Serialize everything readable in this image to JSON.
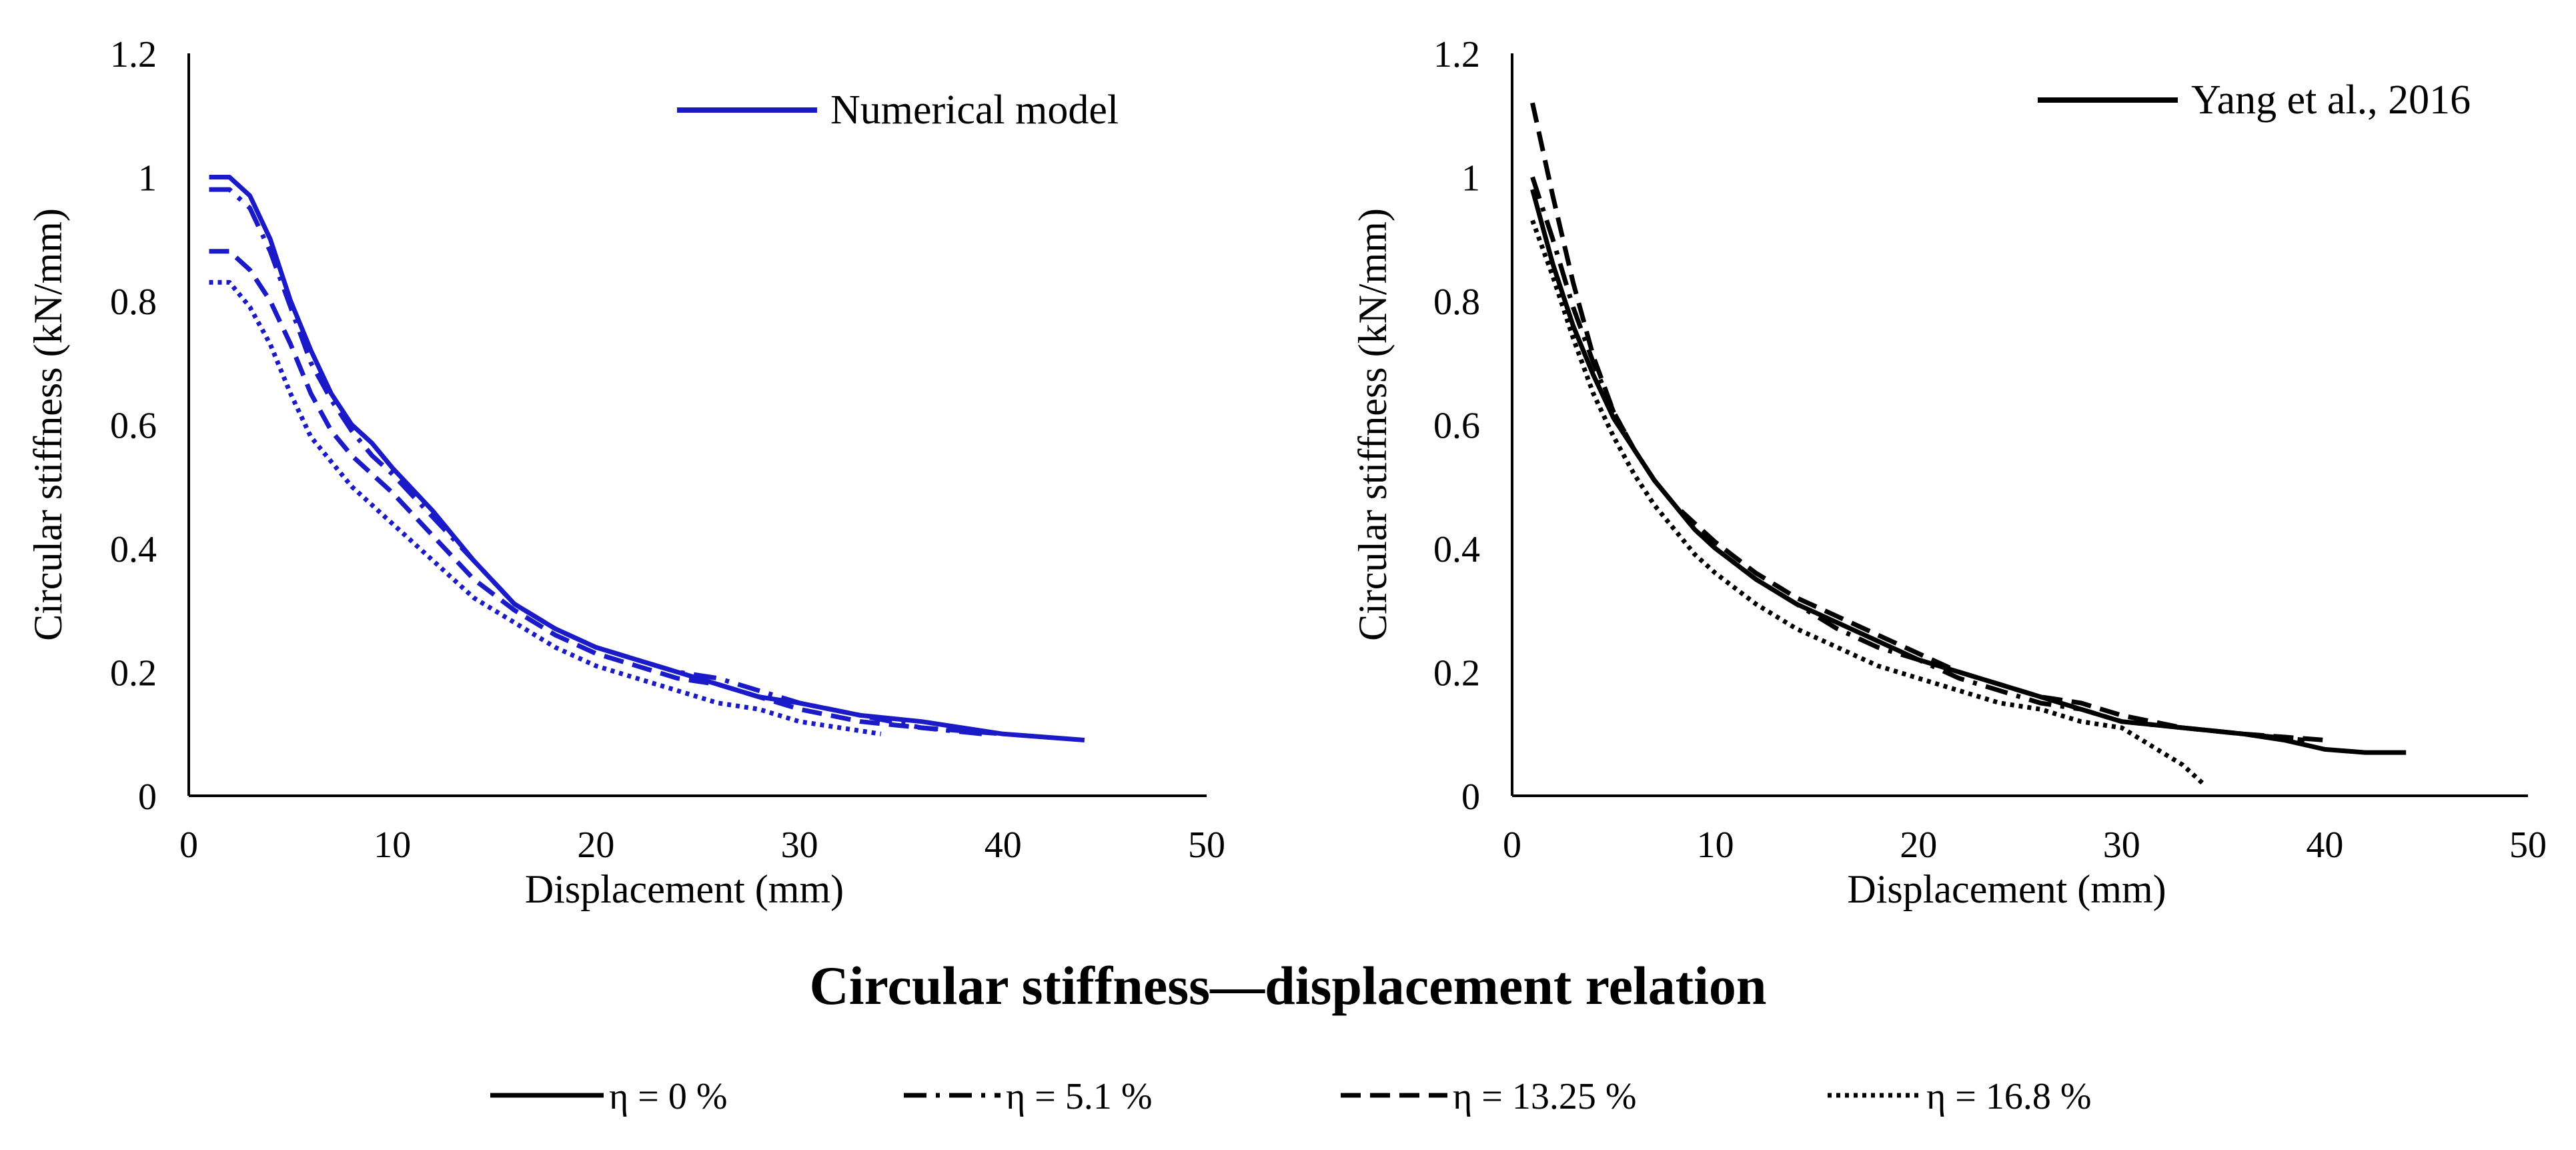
{
  "figure_title": "Circular stiffness—displacement relation",
  "colors": {
    "numerical": "#1a1ac8",
    "experimental": "#000000",
    "axis": "#000000"
  },
  "legend": {
    "items": [
      {
        "key": "eta0",
        "label": "η = 0 %",
        "style": "solid"
      },
      {
        "key": "eta5_1",
        "label": "η = 5.1 %",
        "style": "dashdot"
      },
      {
        "key": "eta13_25",
        "label": "η = 13.25 %",
        "style": "dashed"
      },
      {
        "key": "eta16_8",
        "label": "η = 16.8 %",
        "style": "dotted"
      }
    ]
  },
  "chart_data": [
    {
      "type": "line",
      "panel": "left",
      "title": "",
      "legend_label": "Numerical model",
      "legend_position": "top-right",
      "xlabel": "Displacement (mm)",
      "ylabel": "Circular stiffness  (kN/mm)",
      "xlim": [
        0,
        50
      ],
      "ylim": [
        0,
        1.2
      ],
      "xticks": [
        "0",
        "10",
        "20",
        "30",
        "40",
        "50"
      ],
      "yticks": [
        "0",
        "0.2",
        "0.4",
        "0.6",
        "0.8",
        "1",
        "1.2"
      ],
      "grid": false,
      "series": [
        {
          "name": "η = 0 %",
          "style": "solid",
          "x": [
            1,
            2,
            3,
            4,
            5,
            6,
            7,
            8,
            9,
            10,
            12,
            14,
            16,
            18,
            20,
            22,
            24,
            26,
            28,
            30,
            33,
            36,
            40,
            44
          ],
          "y": [
            1.0,
            1.0,
            0.97,
            0.9,
            0.8,
            0.72,
            0.65,
            0.6,
            0.57,
            0.53,
            0.46,
            0.38,
            0.31,
            0.27,
            0.24,
            0.22,
            0.2,
            0.18,
            0.16,
            0.15,
            0.13,
            0.12,
            0.1,
            0.09
          ]
        },
        {
          "name": "η = 5.1 %",
          "style": "dashdot",
          "x": [
            1,
            2,
            3,
            4,
            5,
            6,
            7,
            8,
            9,
            10,
            12,
            14,
            16,
            18,
            20,
            22,
            24,
            26,
            28,
            30,
            33,
            36,
            39
          ],
          "y": [
            0.98,
            0.98,
            0.95,
            0.88,
            0.79,
            0.7,
            0.64,
            0.59,
            0.55,
            0.52,
            0.45,
            0.38,
            0.31,
            0.27,
            0.24,
            0.22,
            0.2,
            0.19,
            0.17,
            0.15,
            0.13,
            0.11,
            0.1
          ]
        },
        {
          "name": "η = 13.25 %",
          "style": "dashed",
          "x": [
            1,
            2,
            3,
            4,
            5,
            6,
            7,
            8,
            9,
            10,
            12,
            14,
            16,
            18,
            20,
            22,
            24,
            26,
            28,
            30,
            33,
            36,
            40
          ],
          "y": [
            0.88,
            0.88,
            0.85,
            0.8,
            0.73,
            0.65,
            0.59,
            0.55,
            0.52,
            0.49,
            0.42,
            0.35,
            0.3,
            0.26,
            0.23,
            0.21,
            0.19,
            0.18,
            0.16,
            0.14,
            0.12,
            0.11,
            0.1
          ]
        },
        {
          "name": "η = 16.8 %",
          "style": "dotted",
          "x": [
            1,
            2,
            3,
            4,
            5,
            6,
            7,
            8,
            9,
            10,
            12,
            14,
            16,
            18,
            20,
            22,
            24,
            26,
            28,
            30,
            32,
            34
          ],
          "y": [
            0.83,
            0.83,
            0.79,
            0.73,
            0.65,
            0.58,
            0.54,
            0.5,
            0.47,
            0.44,
            0.38,
            0.32,
            0.28,
            0.24,
            0.21,
            0.19,
            0.17,
            0.15,
            0.14,
            0.12,
            0.11,
            0.1
          ]
        }
      ]
    },
    {
      "type": "line",
      "panel": "right",
      "title": "",
      "legend_label": "Yang et al., 2016",
      "legend_position": "top-right",
      "xlabel": "Displacement (mm)",
      "ylabel": "Circular stiffness  (kN/mm)",
      "xlim": [
        0,
        50
      ],
      "ylim": [
        0,
        1.2
      ],
      "xticks": [
        "0",
        "10",
        "20",
        "30",
        "40",
        "50"
      ],
      "yticks": [
        "0",
        "0.2",
        "0.4",
        "0.6",
        "0.8",
        "1",
        "1.2"
      ],
      "grid": false,
      "series": [
        {
          "name": "η = 0 %",
          "style": "solid",
          "x": [
            1,
            2,
            3,
            4,
            5,
            6,
            7,
            8,
            9,
            10,
            12,
            14,
            16,
            18,
            20,
            22,
            24,
            26,
            28,
            30,
            33,
            36,
            38,
            40,
            42,
            44
          ],
          "y": [
            0.98,
            0.86,
            0.76,
            0.68,
            0.61,
            0.56,
            0.51,
            0.47,
            0.43,
            0.4,
            0.35,
            0.31,
            0.28,
            0.25,
            0.22,
            0.2,
            0.18,
            0.16,
            0.14,
            0.12,
            0.11,
            0.1,
            0.09,
            0.075,
            0.07,
            0.07
          ]
        },
        {
          "name": "η = 5.1 %",
          "style": "dashdot",
          "x": [
            1,
            2,
            3,
            4,
            5,
            6,
            7,
            8,
            9,
            10,
            12,
            14,
            16,
            18,
            20,
            22,
            24,
            26,
            28,
            30,
            33,
            36,
            39
          ],
          "y": [
            1.0,
            0.9,
            0.79,
            0.7,
            0.62,
            0.56,
            0.51,
            0.47,
            0.43,
            0.4,
            0.35,
            0.31,
            0.27,
            0.24,
            0.22,
            0.19,
            0.17,
            0.15,
            0.14,
            0.12,
            0.11,
            0.1,
            0.09
          ]
        },
        {
          "name": "η = 13.25 %",
          "style": "dashed",
          "x": [
            1,
            2,
            3,
            4,
            5,
            6,
            7,
            8,
            9,
            10,
            12,
            14,
            16,
            18,
            20,
            22,
            24,
            26,
            28,
            30,
            33,
            36,
            40
          ],
          "y": [
            1.12,
            0.97,
            0.83,
            0.71,
            0.62,
            0.56,
            0.51,
            0.47,
            0.44,
            0.41,
            0.36,
            0.32,
            0.29,
            0.26,
            0.23,
            0.2,
            0.18,
            0.16,
            0.15,
            0.13,
            0.11,
            0.1,
            0.09
          ]
        },
        {
          "name": "η = 16.8 %",
          "style": "dotted",
          "x": [
            1,
            2,
            3,
            4,
            5,
            6,
            7,
            8,
            9,
            10,
            12,
            14,
            16,
            18,
            20,
            22,
            24,
            26,
            28,
            30,
            31,
            32,
            33,
            34
          ],
          "y": [
            0.93,
            0.84,
            0.74,
            0.65,
            0.58,
            0.52,
            0.47,
            0.43,
            0.39,
            0.36,
            0.31,
            0.27,
            0.24,
            0.21,
            0.19,
            0.17,
            0.15,
            0.14,
            0.12,
            0.11,
            0.09,
            0.07,
            0.05,
            0.02
          ]
        }
      ]
    }
  ]
}
